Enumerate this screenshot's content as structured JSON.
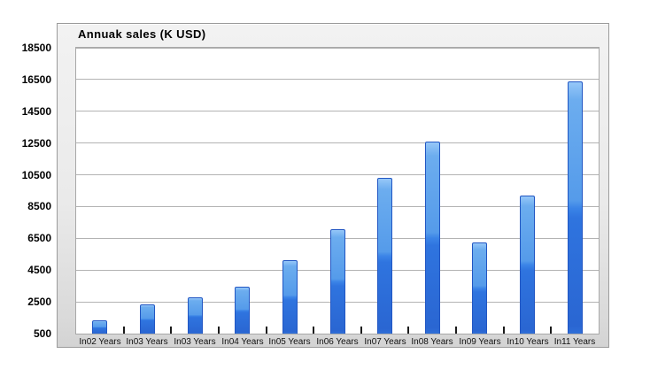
{
  "chart_data": {
    "type": "bar",
    "title": "Annuak sales (K USD)",
    "categories": [
      "In02 Years",
      "In03 Years",
      "In03 Years",
      "In04 Years",
      "In05 Years",
      "In06 Years",
      "In07 Years",
      "In08 Years",
      "In09 Years",
      "In10 Years",
      "In11 Years"
    ],
    "values": [
      1350,
      2350,
      2800,
      3450,
      5150,
      7100,
      10300,
      12600,
      6250,
      9200,
      16400
    ],
    "xlabel": "",
    "ylabel": "",
    "ylim": [
      500,
      18500
    ],
    "y_ticks": [
      500,
      2500,
      4500,
      6500,
      8500,
      10500,
      12500,
      14500,
      16500,
      18500
    ],
    "grid": "horizontal-only",
    "legend_position": "none",
    "bar_unit": "K USD"
  },
  "colors": {
    "bar_top": "#96c7f8",
    "bar_light": "#559bea",
    "bar_dark": "#2a66d2",
    "bar_border": "#2156c3",
    "panel_background": "#e9e9e9",
    "panel_border": "#9b9b9b",
    "plot_background": "#ffffff",
    "grid_line": "#b3b3b3",
    "category_tick": "#1b1b1b",
    "text": "#000000"
  }
}
